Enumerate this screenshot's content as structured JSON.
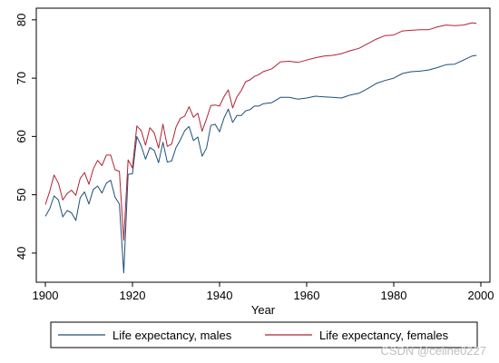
{
  "chart_data": {
    "type": "line",
    "xlabel": "Year",
    "ylabel": "",
    "xlim": [
      1900,
      2000
    ],
    "ylim": [
      35,
      82
    ],
    "x_ticks": [
      1900,
      1920,
      1940,
      1960,
      1980,
      2000
    ],
    "y_ticks": [
      40,
      50,
      60,
      70,
      80
    ],
    "grid": false,
    "legend_position": "bottom",
    "series": [
      {
        "name": "Life expectancy, males",
        "color": "#1f4e79",
        "x": [
          1900,
          1901,
          1902,
          1903,
          1904,
          1905,
          1906,
          1907,
          1908,
          1909,
          1910,
          1911,
          1912,
          1913,
          1914,
          1915,
          1916,
          1917,
          1918,
          1919,
          1920,
          1921,
          1922,
          1923,
          1924,
          1925,
          1926,
          1927,
          1928,
          1929,
          1930,
          1931,
          1932,
          1933,
          1934,
          1935,
          1936,
          1937,
          1938,
          1939,
          1940,
          1941,
          1942,
          1943,
          1944,
          1945,
          1946,
          1947,
          1948,
          1949,
          1950,
          1952,
          1954,
          1956,
          1958,
          1960,
          1962,
          1964,
          1966,
          1968,
          1970,
          1972,
          1974,
          1976,
          1978,
          1980,
          1982,
          1984,
          1986,
          1988,
          1990,
          1992,
          1994,
          1996,
          1998,
          1999
        ],
        "values": [
          46.3,
          47.6,
          49.8,
          49.1,
          46.2,
          47.3,
          46.9,
          45.6,
          49.5,
          50.5,
          48.4,
          50.9,
          51.5,
          50.3,
          52.0,
          52.5,
          49.6,
          48.4,
          36.6,
          53.5,
          53.6,
          60.0,
          58.4,
          56.1,
          58.1,
          57.6,
          55.5,
          59.0,
          55.6,
          55.8,
          58.1,
          59.4,
          61.0,
          61.7,
          59.3,
          59.9,
          56.6,
          58.0,
          61.9,
          62.1,
          60.8,
          63.1,
          64.7,
          62.4,
          63.6,
          63.6,
          64.4,
          64.6,
          65.2,
          65.2,
          65.6,
          65.8,
          66.7,
          66.7,
          66.4,
          66.6,
          66.9,
          66.8,
          66.7,
          66.6,
          67.1,
          67.4,
          68.2,
          69.1,
          69.6,
          70.0,
          70.8,
          71.1,
          71.2,
          71.4,
          71.8,
          72.3,
          72.4,
          73.1,
          73.8,
          73.9
        ]
      },
      {
        "name": "Life expectancy, females",
        "color": "#b22234",
        "x": [
          1900,
          1901,
          1902,
          1903,
          1904,
          1905,
          1906,
          1907,
          1908,
          1909,
          1910,
          1911,
          1912,
          1913,
          1914,
          1915,
          1916,
          1917,
          1918,
          1919,
          1920,
          1921,
          1922,
          1923,
          1924,
          1925,
          1926,
          1927,
          1928,
          1929,
          1930,
          1931,
          1932,
          1933,
          1934,
          1935,
          1936,
          1937,
          1938,
          1939,
          1940,
          1941,
          1942,
          1943,
          1944,
          1945,
          1946,
          1947,
          1948,
          1949,
          1950,
          1952,
          1954,
          1956,
          1958,
          1960,
          1962,
          1964,
          1966,
          1968,
          1970,
          1972,
          1974,
          1976,
          1978,
          1980,
          1982,
          1984,
          1986,
          1988,
          1990,
          1992,
          1994,
          1996,
          1998,
          1999
        ],
        "values": [
          48.3,
          50.6,
          53.4,
          52.0,
          49.1,
          50.2,
          50.8,
          49.9,
          52.8,
          53.8,
          51.8,
          54.4,
          55.9,
          55.0,
          56.8,
          56.8,
          54.3,
          54.0,
          42.2,
          56.0,
          54.6,
          61.8,
          61.0,
          58.5,
          61.5,
          60.6,
          58.0,
          62.1,
          58.3,
          58.7,
          61.6,
          63.1,
          63.5,
          65.1,
          63.3,
          64.0,
          60.9,
          63.0,
          65.3,
          65.4,
          65.2,
          66.8,
          68.0,
          64.9,
          66.8,
          67.9,
          69.4,
          69.7,
          70.3,
          70.6,
          71.1,
          71.6,
          72.8,
          72.9,
          72.7,
          73.1,
          73.5,
          73.8,
          73.9,
          74.2,
          74.7,
          75.1,
          75.9,
          76.7,
          77.3,
          77.4,
          78.1,
          78.2,
          78.3,
          78.3,
          78.8,
          79.1,
          79.0,
          79.1,
          79.5,
          79.4
        ]
      }
    ]
  },
  "watermark": "CSDN @celine0227"
}
